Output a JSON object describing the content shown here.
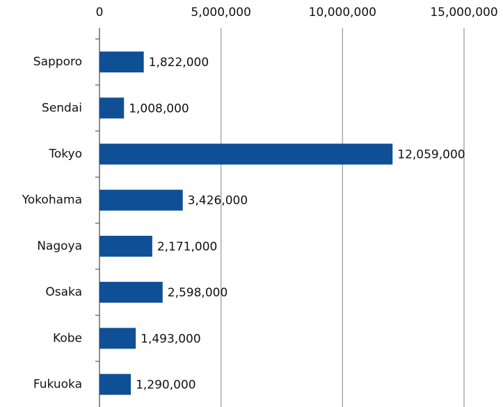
{
  "chart_data": {
    "type": "bar",
    "orientation": "horizontal",
    "categories": [
      "Sapporo",
      "Sendai",
      "Tokyo",
      "Yokohama",
      "Nagoya",
      "Osaka",
      "Kobe",
      "Fukuoka"
    ],
    "values": [
      1822000,
      1008000,
      12059000,
      3426000,
      2171000,
      2598000,
      1493000,
      1290000
    ],
    "value_labels": [
      "1,822,000",
      "1,008,000",
      "12,059,000",
      "3,426,000",
      "2,171,000",
      "2,598,000",
      "1,493,000",
      "1,290,000"
    ],
    "color": "#0f4f96",
    "xlim": [
      0,
      15000000
    ],
    "xticks": [
      0,
      {
        "value": 5000000,
        "label": "5,000,000"
      },
      {
        "value": 10000000,
        "label": "10,000,000"
      },
      {
        "value": 15000000,
        "label": "15,000,000"
      }
    ],
    "grid": true
  }
}
